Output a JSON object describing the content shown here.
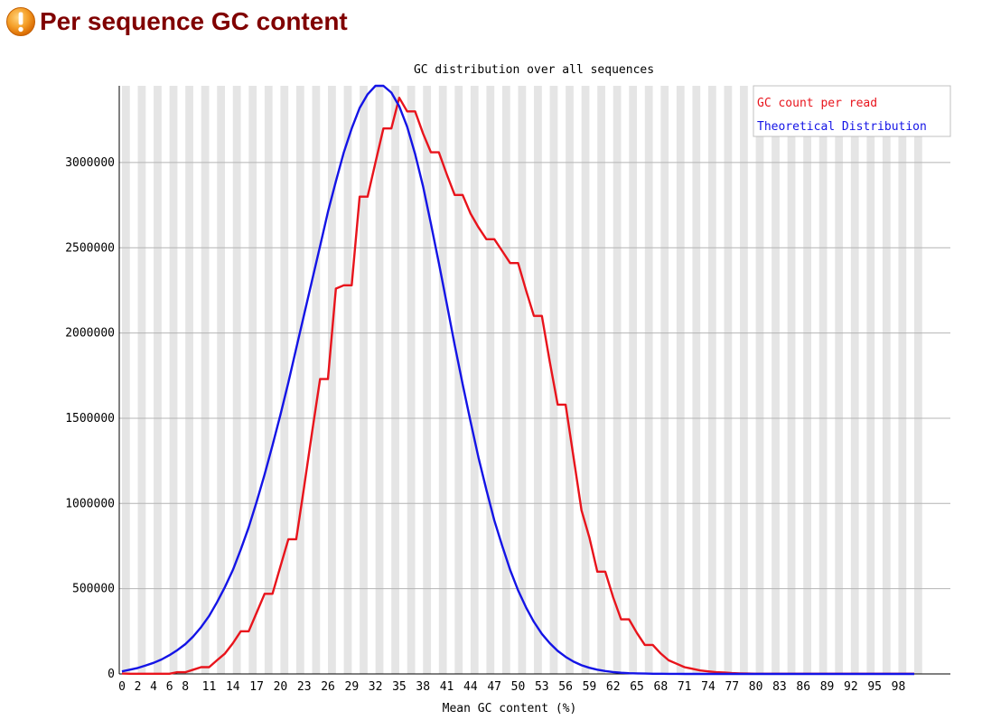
{
  "header": {
    "title": "Per sequence GC content",
    "status_icon": "warning-icon",
    "status_color": "#f28c1a"
  },
  "chart_data": {
    "type": "line",
    "title": "GC distribution over all sequences",
    "xlabel": "Mean GC content (%)",
    "ylabel": "",
    "xlim": [
      0,
      100
    ],
    "ylim": [
      0,
      3450000
    ],
    "grid": true,
    "legend_position": "top-right",
    "x_ticks": [
      0,
      2,
      4,
      6,
      8,
      11,
      14,
      17,
      20,
      23,
      26,
      29,
      32,
      35,
      38,
      41,
      44,
      47,
      50,
      53,
      56,
      59,
      62,
      65,
      68,
      71,
      74,
      77,
      80,
      83,
      86,
      89,
      92,
      95,
      98
    ],
    "y_ticks": [
      0,
      500000,
      1000000,
      1500000,
      2000000,
      2500000,
      3000000
    ],
    "x": [
      0,
      1,
      2,
      3,
      4,
      5,
      6,
      7,
      8,
      9,
      10,
      11,
      12,
      13,
      14,
      15,
      16,
      17,
      18,
      19,
      20,
      21,
      22,
      23,
      24,
      25,
      26,
      27,
      28,
      29,
      30,
      31,
      32,
      33,
      34,
      35,
      36,
      37,
      38,
      39,
      40,
      41,
      42,
      43,
      44,
      45,
      46,
      47,
      48,
      49,
      50,
      51,
      52,
      53,
      54,
      55,
      56,
      57,
      58,
      59,
      60,
      61,
      62,
      63,
      64,
      65,
      66,
      67,
      68,
      69,
      70,
      71,
      72,
      73,
      74,
      75,
      76,
      77,
      78,
      79,
      80,
      81,
      82,
      83,
      84,
      85,
      86,
      87,
      88,
      89,
      90,
      91,
      92,
      93,
      94,
      95,
      96,
      97,
      98,
      99,
      100
    ],
    "series": [
      {
        "name": "GC count per read",
        "color": "#e8141c",
        "values": [
          2000,
          1000,
          1000,
          1000,
          1000,
          1000,
          1000,
          10000,
          10000,
          25000,
          40000,
          40000,
          80000,
          120000,
          180000,
          250000,
          250000,
          360000,
          470000,
          470000,
          630000,
          790000,
          790000,
          1100000,
          1420000,
          1730000,
          1730000,
          2260000,
          2280000,
          2280000,
          2800000,
          2800000,
          3000000,
          3200000,
          3200000,
          3380000,
          3300000,
          3300000,
          3170000,
          3060000,
          3060000,
          2930000,
          2810000,
          2810000,
          2700000,
          2620000,
          2550000,
          2550000,
          2480000,
          2410000,
          2410000,
          2250000,
          2100000,
          2100000,
          1830000,
          1580000,
          1580000,
          1270000,
          960000,
          800000,
          600000,
          600000,
          450000,
          320000,
          320000,
          240000,
          170000,
          170000,
          120000,
          80000,
          60000,
          40000,
          30000,
          20000,
          15000,
          10000,
          8000,
          5000,
          3000,
          2000,
          1000,
          1000,
          1000,
          1000,
          1000,
          1000,
          1000,
          1000,
          1000,
          1000,
          1000,
          1000,
          1000,
          1000,
          1000,
          1000,
          1000,
          1000,
          1000,
          1000,
          1000
        ]
      },
      {
        "name": "Theoretical Distribution",
        "color": "#1414e6",
        "values": [
          15000,
          25000,
          35000,
          50000,
          65000,
          85000,
          110000,
          140000,
          175000,
          220000,
          275000,
          340000,
          420000,
          510000,
          610000,
          730000,
          860000,
          1010000,
          1170000,
          1340000,
          1520000,
          1710000,
          1910000,
          2110000,
          2310000,
          2510000,
          2710000,
          2890000,
          3060000,
          3200000,
          3320000,
          3400000,
          3450000,
          3450000,
          3410000,
          3330000,
          3210000,
          3050000,
          2860000,
          2640000,
          2410000,
          2170000,
          1930000,
          1700000,
          1480000,
          1270000,
          1080000,
          900000,
          750000,
          610000,
          490000,
          390000,
          305000,
          235000,
          180000,
          135000,
          100000,
          72000,
          51000,
          36000,
          25000,
          17000,
          11000,
          7000,
          4500,
          3000,
          2000,
          1300,
          800,
          500,
          300,
          200,
          100,
          100,
          100,
          100,
          100,
          100,
          100,
          100,
          100,
          100,
          100,
          100,
          100,
          100,
          100,
          100,
          100,
          100,
          100,
          100,
          100,
          100,
          100,
          100,
          100,
          100,
          100,
          100,
          100
        ]
      }
    ]
  },
  "colors": {
    "stripe": "#e5e5e5",
    "grid": "#b4b4b4",
    "axis": "#000000",
    "text": "#000000"
  }
}
